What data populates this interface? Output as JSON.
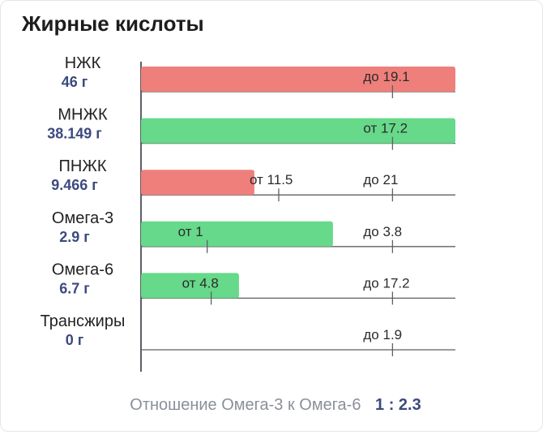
{
  "title": "Жирные кислоты",
  "footer": {
    "label": "Отношение Омега-3 к Омега-6",
    "ratio": "1 : 2.3"
  },
  "colors": {
    "over_limit": "#ef7f7b",
    "ok": "#66d98a",
    "amount": "#3c4a7e",
    "axis": "#5d6066"
  },
  "chart_data": {
    "type": "bar",
    "orientation": "horizontal",
    "categories": [
      "НЖК",
      "МНЖК",
      "ПНЖК",
      "Омега-3",
      "Омега-6",
      "Трансжиры"
    ],
    "amount_labels": [
      "46 г",
      "38.149 г",
      "9.466 г",
      "2.9 г",
      "6.7 г",
      "0 г"
    ],
    "values": [
      46,
      38.149,
      9.466,
      2.9,
      6.7,
      0
    ],
    "status": [
      "over_limit",
      "ok",
      "over_limit",
      "ok",
      "ok",
      "ok"
    ],
    "norm_min": [
      null,
      17.2,
      11.5,
      1,
      4.8,
      null
    ],
    "norm_max": [
      19.1,
      null,
      21,
      3.8,
      17.2,
      1.9
    ],
    "marker_labels": [
      [
        "до 19.1"
      ],
      [
        "от 17.2"
      ],
      [
        "от 11.5",
        "до 21"
      ],
      [
        "от 1",
        "до 3.8"
      ],
      [
        "от 4.8",
        "до 17.2"
      ],
      [
        "до 1.9"
      ]
    ]
  }
}
